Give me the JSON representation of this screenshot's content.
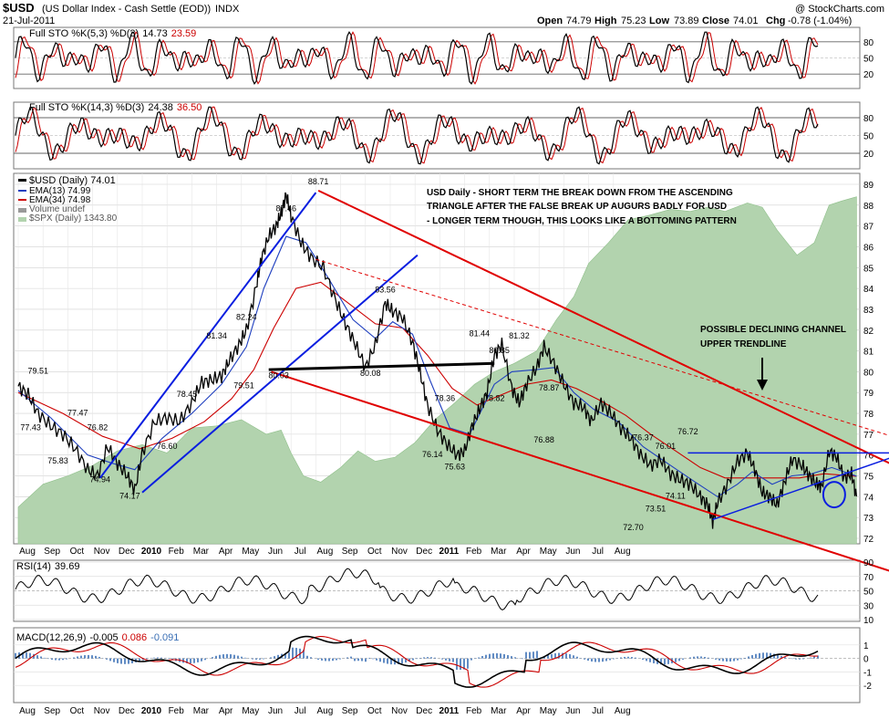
{
  "header": {
    "symbol": "$USD",
    "name": "(US Dollar Index - Cash Settle (EOD))",
    "exchange": "INDX",
    "date": "21-Jul-2011",
    "watermark": "@ StockCharts.com",
    "open_label": "Open",
    "open": "74.79",
    "high_label": "High",
    "high": "75.23",
    "low_label": "Low",
    "low": "73.89",
    "close_label": "Close",
    "close": "74.01",
    "chg_label": "Chg",
    "chg": "-0.78 (-1.04%)"
  },
  "colors": {
    "price": "#000000",
    "ema_fast": "#1f3fbf",
    "ema_slow": "#cc0000",
    "spx_fill": "#b2d3ae",
    "trend_red": "#e00000",
    "trend_blue": "#0a1ee0",
    "trend_black": "#000000",
    "macd_hist": "#3a6fb5",
    "grid": "#d0d0d0"
  },
  "chart_data": [
    {
      "panel": "sto_fast",
      "type": "line",
      "title": "Full STO %K(5,3) %D(3)",
      "values": [
        "14.73",
        "23.59"
      ],
      "ylim": [
        0,
        100
      ],
      "levels": [
        "80",
        "50",
        "20"
      ],
      "series": [
        {
          "name": "%K",
          "color": "#000000"
        },
        {
          "name": "%D",
          "color": "#cc0000"
        }
      ]
    },
    {
      "panel": "sto_slow",
      "type": "line",
      "title": "Full STO %K(14,3) %D(3)",
      "values": [
        "24.38",
        "36.50"
      ],
      "ylim": [
        0,
        100
      ],
      "levels": [
        "80",
        "50",
        "20"
      ],
      "series": [
        {
          "name": "%K",
          "color": "#000000"
        },
        {
          "name": "%D",
          "color": "#cc0000"
        }
      ]
    },
    {
      "panel": "price",
      "type": "line",
      "legend": [
        {
          "label": "$USD (Daily) 74.01",
          "color": "#000000"
        },
        {
          "label": "EMA(13) 74.99",
          "color": "#1f3fbf"
        },
        {
          "label": "EMA(34) 74.98",
          "color": "#cc0000"
        },
        {
          "label": "Volume undef",
          "color": "#888888"
        },
        {
          "label": "$SPX (Daily) 1343.80",
          "color": "#888888"
        }
      ],
      "annotation_main": [
        "USD Daily - SHORT TERM THE BREAK DOWN FROM THE ASCENDING",
        "TRIANGLE AFTER THE FALSE BREAK UP AUGURS BADLY FOR USD",
        "- LONGER TERM THOUGH, THIS LOOKS LIKE A BOTTOMING PATTERN"
      ],
      "annotation_channel": [
        "POSSIBLE DECLINING CHANNEL",
        "UPPER TRENDLINE"
      ],
      "ylim": [
        72,
        89
      ],
      "yticks": [
        "72",
        "73",
        "74",
        "75",
        "76",
        "77",
        "78",
        "79",
        "80",
        "81",
        "82",
        "83",
        "84",
        "85",
        "86",
        "87",
        "88",
        "89"
      ],
      "x_months": [
        "Aug",
        "Sep",
        "Oct",
        "Nov",
        "Dec",
        "2010",
        "Feb",
        "Mar",
        "Apr",
        "May",
        "Jun",
        "Jul",
        "Aug",
        "Sep",
        "Oct",
        "Nov",
        "Dec",
        "2011",
        "Feb",
        "Mar",
        "Apr",
        "May",
        "Jun",
        "Jul",
        "Aug"
      ],
      "price_path": [
        [
          0,
          79.3
        ],
        [
          0.4,
          78.9
        ],
        [
          0.8,
          78.0
        ],
        [
          1.3,
          77.4
        ],
        [
          1.8,
          77.0
        ],
        [
          2.3,
          76.3
        ],
        [
          2.8,
          75.3
        ],
        [
          3.2,
          75.0
        ],
        [
          3.6,
          76.4
        ],
        [
          4.0,
          75.6
        ],
        [
          4.4,
          75.0
        ],
        [
          4.7,
          74.3
        ],
        [
          5.0,
          76.1
        ],
        [
          5.5,
          77.6
        ],
        [
          6.0,
          77.8
        ],
        [
          6.5,
          77.6
        ],
        [
          7.0,
          78.5
        ],
        [
          7.4,
          79.5
        ],
        [
          7.8,
          79.6
        ],
        [
          8.2,
          79.8
        ],
        [
          8.5,
          80.5
        ],
        [
          8.9,
          81.3
        ],
        [
          9.2,
          82.0
        ],
        [
          9.6,
          84.1
        ],
        [
          9.8,
          85.4
        ],
        [
          10.1,
          86.5
        ],
        [
          10.4,
          87.0
        ],
        [
          10.6,
          87.6
        ],
        [
          10.8,
          88.5
        ],
        [
          11.0,
          87.5
        ],
        [
          11.4,
          86.2
        ],
        [
          11.8,
          85.5
        ],
        [
          12.3,
          85.0
        ],
        [
          12.8,
          83.4
        ],
        [
          13.2,
          82.3
        ],
        [
          13.6,
          81.3
        ],
        [
          14.0,
          80.2
        ],
        [
          14.4,
          81.3
        ],
        [
          14.8,
          83.3
        ],
        [
          15.1,
          82.9
        ],
        [
          15.5,
          82.6
        ],
        [
          15.9,
          81.4
        ],
        [
          16.2,
          80.0
        ],
        [
          16.5,
          78.4
        ],
        [
          16.9,
          77.2
        ],
        [
          17.3,
          76.5
        ],
        [
          17.7,
          76.0
        ],
        [
          18.0,
          76.2
        ],
        [
          18.3,
          77.4
        ],
        [
          18.6,
          78.2
        ],
        [
          18.9,
          79.0
        ],
        [
          19.2,
          80.8
        ],
        [
          19.5,
          81.3
        ],
        [
          19.9,
          79.2
        ],
        [
          20.2,
          78.5
        ],
        [
          20.5,
          79.4
        ],
        [
          20.9,
          80.2
        ],
        [
          21.2,
          81.2
        ],
        [
          21.6,
          80.4
        ],
        [
          22.0,
          79.4
        ],
        [
          22.4,
          78.5
        ],
        [
          22.8,
          78.3
        ],
        [
          23.1,
          77.6
        ],
        [
          23.5,
          78.5
        ],
        [
          23.9,
          78.0
        ],
        [
          24.3,
          77.3
        ],
        [
          24.7,
          76.8
        ],
        [
          25.1,
          76.0
        ],
        [
          25.5,
          75.5
        ],
        [
          25.9,
          75.8
        ],
        [
          26.3,
          75.1
        ],
        [
          26.7,
          74.8
        ],
        [
          27.1,
          74.6
        ],
        [
          27.5,
          74.0
        ],
        [
          27.8,
          73.6
        ],
        [
          28.0,
          72.8
        ],
        [
          28.2,
          73.7
        ],
        [
          28.6,
          74.6
        ],
        [
          29.0,
          75.7
        ],
        [
          29.4,
          76.1
        ],
        [
          29.7,
          75.3
        ],
        [
          30.0,
          74.2
        ],
        [
          30.3,
          74.0
        ],
        [
          30.6,
          73.6
        ],
        [
          30.9,
          74.7
        ],
        [
          31.2,
          75.8
        ],
        [
          31.6,
          75.5
        ],
        [
          31.9,
          75.0
        ],
        [
          32.2,
          74.6
        ],
        [
          32.4,
          74.5
        ],
        [
          32.7,
          76.2
        ],
        [
          33.0,
          75.9
        ],
        [
          33.3,
          74.9
        ],
        [
          33.6,
          75.1
        ],
        [
          33.8,
          74.01
        ]
      ],
      "ema_fast_path": [
        [
          0,
          79.1
        ],
        [
          1.3,
          77.8
        ],
        [
          2.8,
          76.0
        ],
        [
          3.8,
          75.6
        ],
        [
          4.7,
          75.3
        ],
        [
          5.8,
          76.8
        ],
        [
          7.0,
          78.0
        ],
        [
          8.2,
          79.4
        ],
        [
          9.2,
          81.2
        ],
        [
          9.9,
          84.0
        ],
        [
          10.8,
          86.5
        ],
        [
          11.6,
          86.2
        ],
        [
          12.5,
          84.5
        ],
        [
          13.5,
          82.5
        ],
        [
          14.4,
          81.6
        ],
        [
          15.1,
          82.4
        ],
        [
          15.9,
          81.8
        ],
        [
          16.6,
          79.6
        ],
        [
          17.4,
          77.3
        ],
        [
          18.2,
          77.0
        ],
        [
          19.2,
          79.4
        ],
        [
          19.9,
          80.0
        ],
        [
          20.9,
          80.1
        ],
        [
          21.6,
          80.2
        ],
        [
          22.4,
          79.0
        ],
        [
          23.2,
          78.2
        ],
        [
          24.2,
          77.6
        ],
        [
          25.2,
          76.4
        ],
        [
          26.3,
          75.5
        ],
        [
          27.3,
          74.7
        ],
        [
          28.2,
          74.0
        ],
        [
          29.0,
          74.6
        ],
        [
          29.6,
          75.2
        ],
        [
          30.4,
          74.6
        ],
        [
          31.2,
          75.0
        ],
        [
          32.0,
          75.1
        ],
        [
          32.8,
          75.4
        ],
        [
          33.8,
          74.99
        ]
      ],
      "ema_slow_path": [
        [
          0,
          79.0
        ],
        [
          1.8,
          78.0
        ],
        [
          3.4,
          76.9
        ],
        [
          4.9,
          76.3
        ],
        [
          6.2,
          76.8
        ],
        [
          7.5,
          77.6
        ],
        [
          8.6,
          78.7
        ],
        [
          9.5,
          80.1
        ],
        [
          10.3,
          82.1
        ],
        [
          11.2,
          84.0
        ],
        [
          12.2,
          84.3
        ],
        [
          13.3,
          83.3
        ],
        [
          14.4,
          82.3
        ],
        [
          15.5,
          82.1
        ],
        [
          16.5,
          80.8
        ],
        [
          17.5,
          79.2
        ],
        [
          18.5,
          78.4
        ],
        [
          19.5,
          78.9
        ],
        [
          20.5,
          79.4
        ],
        [
          21.5,
          79.6
        ],
        [
          22.5,
          79.2
        ],
        [
          23.5,
          78.6
        ],
        [
          24.5,
          77.9
        ],
        [
          25.5,
          77.0
        ],
        [
          26.5,
          76.2
        ],
        [
          27.5,
          75.4
        ],
        [
          28.5,
          74.9
        ],
        [
          29.5,
          74.9
        ],
        [
          30.5,
          74.9
        ],
        [
          31.5,
          74.9
        ],
        [
          32.5,
          75.1
        ],
        [
          33.8,
          74.98
        ]
      ],
      "spx_path": [
        [
          0,
          73.5
        ],
        [
          1.0,
          74.6
        ],
        [
          2.0,
          75.0
        ],
        [
          3.0,
          75.5
        ],
        [
          4.0,
          76.2
        ],
        [
          5.0,
          76.5
        ],
        [
          6.0,
          76.1
        ],
        [
          7.0,
          77.3
        ],
        [
          8.0,
          77.4
        ],
        [
          9.0,
          77.7
        ],
        [
          10.0,
          77.0
        ],
        [
          10.6,
          77.2
        ],
        [
          11.0,
          76.1
        ],
        [
          11.5,
          75.0
        ],
        [
          12.2,
          74.7
        ],
        [
          13.0,
          75.4
        ],
        [
          13.7,
          76.2
        ],
        [
          14.4,
          75.7
        ],
        [
          15.2,
          75.9
        ],
        [
          16.0,
          76.6
        ],
        [
          16.8,
          77.7
        ],
        [
          17.6,
          78.5
        ],
        [
          18.4,
          79.4
        ],
        [
          19.2,
          80.0
        ],
        [
          20.0,
          80.4
        ],
        [
          20.9,
          81.0
        ],
        [
          21.7,
          82.5
        ],
        [
          22.4,
          83.6
        ],
        [
          23.0,
          85.2
        ],
        [
          23.8,
          86.2
        ],
        [
          24.6,
          87.3
        ],
        [
          25.4,
          87.5
        ],
        [
          26.3,
          87.8
        ],
        [
          27.1,
          87.7
        ],
        [
          27.8,
          87.9
        ],
        [
          28.5,
          87.7
        ],
        [
          29.4,
          88.1
        ],
        [
          30.0,
          87.9
        ],
        [
          30.6,
          86.8
        ],
        [
          31.4,
          85.6
        ],
        [
          32.1,
          86.2
        ],
        [
          32.7,
          88.0
        ],
        [
          33.2,
          88.2
        ],
        [
          33.8,
          88.4
        ]
      ],
      "price_labels": [
        {
          "text": "79.51",
          "x": 0.8,
          "y": 79.9
        },
        {
          "text": "77.43",
          "x": 0.5,
          "y": 77.2
        },
        {
          "text": "77.47",
          "x": 2.4,
          "y": 77.9
        },
        {
          "text": "76.82",
          "x": 3.2,
          "y": 77.2
        },
        {
          "text": "75.83",
          "x": 1.6,
          "y": 75.6
        },
        {
          "text": "74.94",
          "x": 3.3,
          "y": 74.7
        },
        {
          "text": "74.17",
          "x": 4.5,
          "y": 73.9
        },
        {
          "text": "76.60",
          "x": 6.0,
          "y": 76.3
        },
        {
          "text": "78.45",
          "x": 6.8,
          "y": 78.8
        },
        {
          "text": "81.34",
          "x": 8.0,
          "y": 81.6
        },
        {
          "text": "82.24",
          "x": 9.2,
          "y": 82.5
        },
        {
          "text": "79.51",
          "x": 9.1,
          "y": 79.2
        },
        {
          "text": "80.03",
          "x": 10.5,
          "y": 79.7
        },
        {
          "text": "87.46",
          "x": 10.8,
          "y": 87.7
        },
        {
          "text": "88.71",
          "x": 12.1,
          "y": 89.0
        },
        {
          "text": "83.56",
          "x": 14.8,
          "y": 83.8
        },
        {
          "text": "80.08",
          "x": 14.2,
          "y": 79.8
        },
        {
          "text": "78.36",
          "x": 17.2,
          "y": 78.6
        },
        {
          "text": "76.14",
          "x": 16.7,
          "y": 75.9
        },
        {
          "text": "75.63",
          "x": 17.6,
          "y": 75.3
        },
        {
          "text": "81.44",
          "x": 18.6,
          "y": 81.7
        },
        {
          "text": "80.85",
          "x": 19.4,
          "y": 80.9
        },
        {
          "text": "81.32",
          "x": 20.2,
          "y": 81.6
        },
        {
          "text": "78.82",
          "x": 19.2,
          "y": 78.6
        },
        {
          "text": "78.87",
          "x": 21.4,
          "y": 79.1
        },
        {
          "text": "76.88",
          "x": 21.2,
          "y": 76.6
        },
        {
          "text": "76.37",
          "x": 25.2,
          "y": 76.7
        },
        {
          "text": "76.01",
          "x": 26.1,
          "y": 76.3
        },
        {
          "text": "76.72",
          "x": 27.0,
          "y": 77.0
        },
        {
          "text": "72.70",
          "x": 24.8,
          "y": 72.4
        },
        {
          "text": "73.51",
          "x": 25.7,
          "y": 73.3
        },
        {
          "text": "74.11",
          "x": 26.5,
          "y": 73.9
        }
      ]
    },
    {
      "panel": "rsi",
      "type": "line",
      "title": "RSI(14)",
      "values": [
        "39.69"
      ],
      "ylim": [
        10,
        90
      ],
      "yticks": [
        "90",
        "70",
        "50",
        "30",
        "10"
      ]
    },
    {
      "panel": "macd",
      "type": "line",
      "title": "MACD(12,26,9)",
      "values": [
        "-0.005",
        "0.086",
        "-0.091"
      ],
      "ylim": [
        -3,
        2
      ],
      "yticks": [
        "1",
        "0",
        "-1",
        "-2"
      ],
      "series": [
        {
          "name": "MACD",
          "color": "#000000"
        },
        {
          "name": "Signal",
          "color": "#cc0000"
        },
        {
          "name": "Histogram",
          "color": "#3a6fb5"
        }
      ]
    }
  ]
}
